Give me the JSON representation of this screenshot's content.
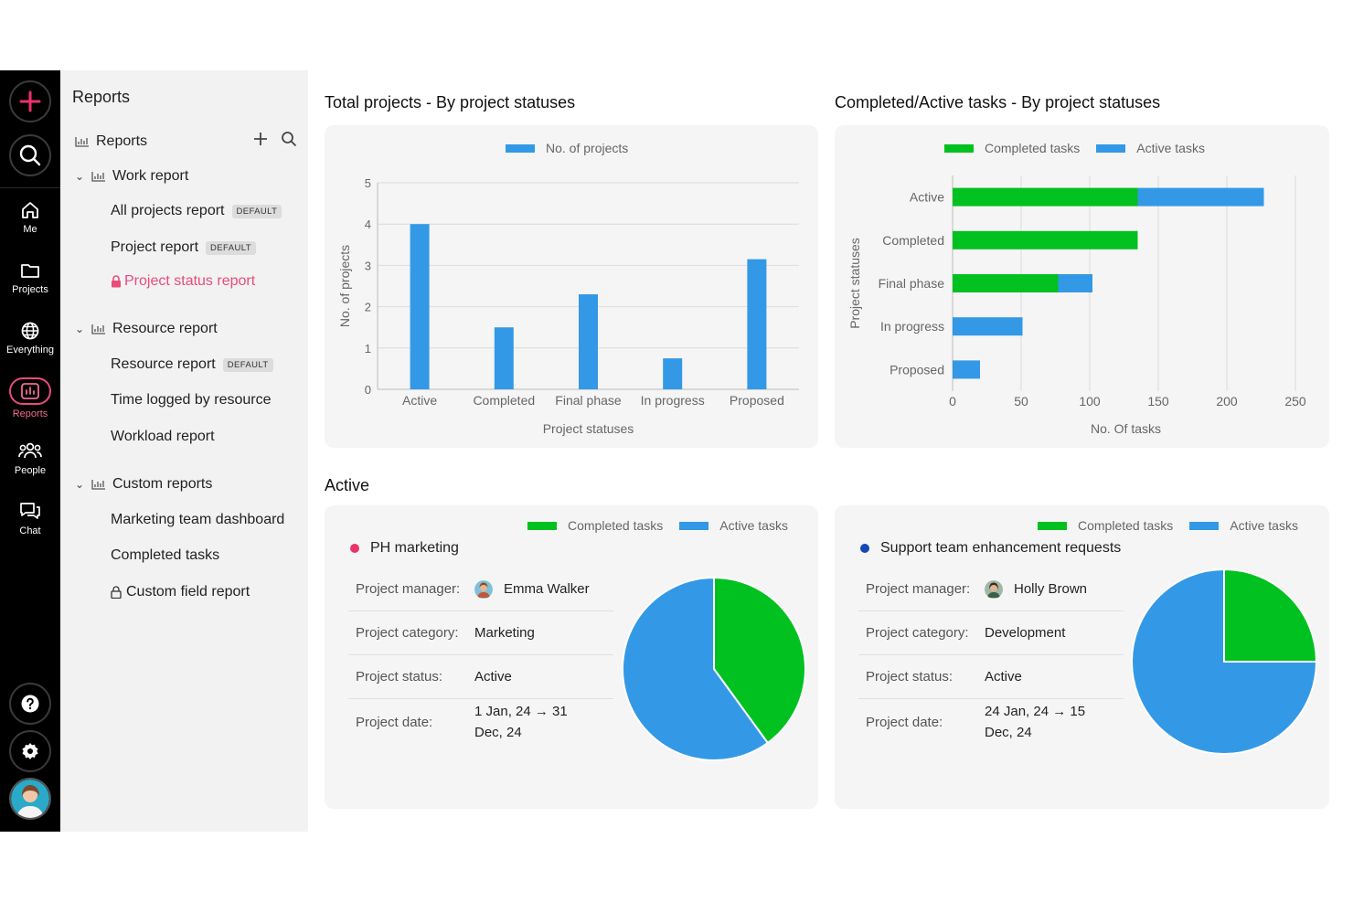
{
  "rail": {
    "items": [
      {
        "label": "Me"
      },
      {
        "label": "Projects"
      },
      {
        "label": "Everything"
      },
      {
        "label": "Reports"
      },
      {
        "label": "People"
      },
      {
        "label": "Chat"
      }
    ],
    "accent": "#e94b7b"
  },
  "sidebar": {
    "title": "Reports",
    "root_label": "Reports",
    "groups": [
      {
        "label": "Work report",
        "items": [
          {
            "label": "All projects report",
            "badge": "DEFAULT"
          },
          {
            "label": "Project report",
            "badge": "DEFAULT"
          },
          {
            "label": "Project status report",
            "selected": true,
            "icon": "lock-icon"
          }
        ]
      },
      {
        "label": "Resource report",
        "items": [
          {
            "label": "Resource report",
            "badge": "DEFAULT"
          },
          {
            "label": "Time logged by resource"
          },
          {
            "label": "Workload report"
          }
        ]
      },
      {
        "label": "Custom reports",
        "items": [
          {
            "label": "Marketing team dashboard"
          },
          {
            "label": "Completed tasks"
          },
          {
            "label": "Custom field report",
            "icon": "lock-icon"
          }
        ]
      }
    ]
  },
  "main": {
    "section_active_title": "Active"
  },
  "chart_data": [
    {
      "type": "bar",
      "title": "Total projects - By project statuses",
      "legend": [
        "No. of projects"
      ],
      "categories": [
        "Active",
        "Completed",
        "Final phase",
        "In progress",
        "Proposed"
      ],
      "series": [
        {
          "name": "No. of projects",
          "values": [
            4,
            1.5,
            2.3,
            0.75,
            3.15
          ],
          "color": "#3399e6"
        }
      ],
      "xlabel": "Project statuses",
      "ylabel": "No. of projects",
      "ylim": [
        0,
        5
      ],
      "yticks": [
        "0",
        "1",
        "2",
        "3",
        "4",
        "5"
      ],
      "grid": true,
      "legend_position": "top"
    },
    {
      "type": "bar",
      "orientation": "horizontal",
      "stacked": true,
      "title": "Completed/Active tasks - By project statuses",
      "legend": [
        "Completed tasks",
        "Active tasks"
      ],
      "categories": [
        "Active",
        "Completed",
        "Final phase",
        "In progress",
        "Proposed"
      ],
      "series": [
        {
          "name": "Completed tasks",
          "values": [
            135,
            135,
            77,
            0,
            0
          ],
          "color": "#00c11f"
        },
        {
          "name": "Active tasks",
          "values": [
            92,
            0,
            25,
            51,
            20
          ],
          "color": "#3399e6"
        }
      ],
      "xlabel": "No. Of tasks",
      "ylabel": "Project statuses",
      "xlim": [
        0,
        250
      ],
      "xticks": [
        "0",
        "50",
        "100",
        "150",
        "200",
        "250"
      ],
      "grid": true,
      "legend_position": "top"
    },
    {
      "type": "pie",
      "legend": [
        "Completed tasks",
        "Active tasks"
      ],
      "values": [
        {
          "name": "Completed tasks",
          "value": 40,
          "color": "#00c11f"
        },
        {
          "name": "Active tasks",
          "value": 60,
          "color": "#3399e6"
        }
      ]
    },
    {
      "type": "pie",
      "legend": [
        "Completed tasks",
        "Active tasks"
      ],
      "values": [
        {
          "name": "Completed tasks",
          "value": 25,
          "color": "#00c11f"
        },
        {
          "name": "Active tasks",
          "value": 75,
          "color": "#3399e6"
        }
      ]
    }
  ],
  "projects": [
    {
      "name": "PH marketing",
      "dot_color": "#e8336b",
      "manager_label": "Project manager:",
      "manager": "Emma Walker",
      "category_label": "Project category:",
      "category": "Marketing",
      "status_label": "Project status:",
      "status": "Active",
      "date_label": "Project date:",
      "date_line1": "1 Jan, 24 → 31",
      "date_line2": "Dec, 24"
    },
    {
      "name": "Support team enhancement requests",
      "dot_color": "#1746b8",
      "manager_label": "Project manager:",
      "manager": "Holly Brown",
      "category_label": "Project category:",
      "category": "Development",
      "status_label": "Project status:",
      "status": "Active",
      "date_label": "Project date:",
      "date_line1": "24 Jan, 24 → 15",
      "date_line2": "Dec, 24"
    }
  ]
}
